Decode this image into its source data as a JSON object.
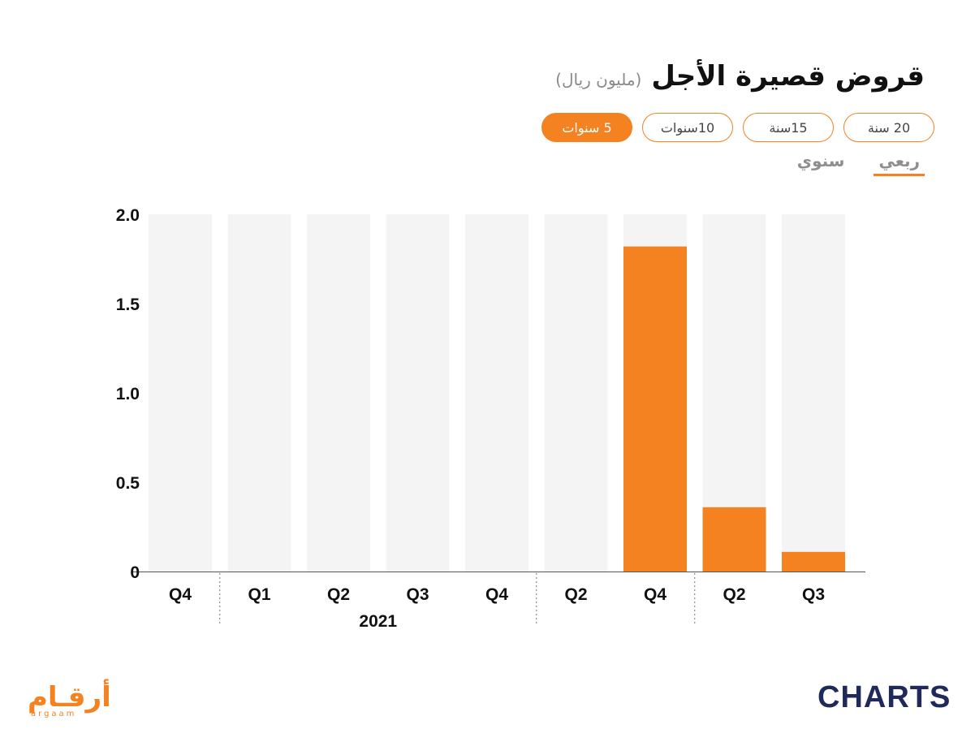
{
  "header": {
    "title": "قروض قصيرة الأجل",
    "subtitle": "(مليون ريال)"
  },
  "periods": [
    {
      "label": "5 سنوات",
      "active": true
    },
    {
      "label": "10سنوات",
      "active": false
    },
    {
      "label": "15سنة",
      "active": false
    },
    {
      "label": "20 سنة",
      "active": false
    }
  ],
  "frequency": [
    {
      "label": "سنوي",
      "active": false
    },
    {
      "label": "ربعي",
      "active": true
    }
  ],
  "chart_data": {
    "type": "bar",
    "categories": [
      "Q4",
      "Q1",
      "Q2",
      "Q3",
      "Q4",
      "Q2",
      "Q4",
      "Q2",
      "Q3"
    ],
    "values": [
      0,
      0,
      0,
      0,
      0,
      0,
      1.82,
      0.36,
      0.11
    ],
    "year_labels": [
      {
        "label": "2021",
        "start": 1,
        "end": 4
      }
    ],
    "group_separators_after": [
      0,
      4,
      6
    ],
    "ylim": [
      0,
      2.0
    ],
    "yticks": [
      "0",
      "0.5",
      "1.0",
      "1.5",
      "2.0"
    ],
    "bar_color": "#f58220",
    "track_color": "#f4f4f4",
    "grid": false
  },
  "brands": {
    "left": "أرقـام",
    "left_sub": "argaam",
    "right": "CHARTS"
  }
}
